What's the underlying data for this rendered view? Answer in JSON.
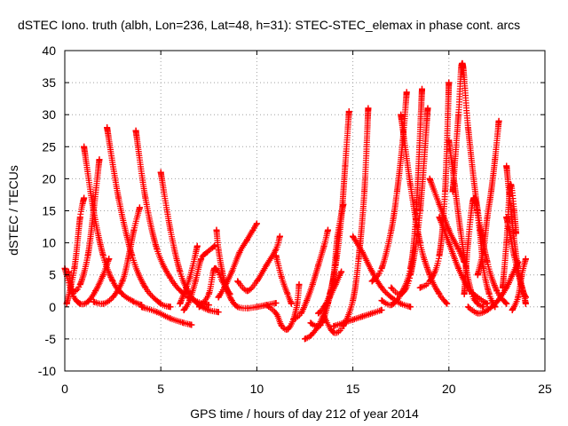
{
  "chart_data": {
    "type": "scatter",
    "title": "dSTEC Iono. truth (albh, Lon=236, Lat=48, h=31): STEC-STEC_elemax in phase cont. arcs",
    "xlabel": "GPS time / hours of day 212 of year 2014",
    "ylabel": "dSTEC  / TECUs",
    "xlim": [
      0,
      25
    ],
    "ylim": [
      -10,
      40
    ],
    "xticks": [
      "0",
      "5",
      "10",
      "15",
      "20",
      "25"
    ],
    "yticks": [
      "-10",
      "-5",
      "0",
      "5",
      "10",
      "15",
      "20",
      "25",
      "30",
      "35",
      "40"
    ],
    "grid": true,
    "marker": "+",
    "color": "#ff0000",
    "series": [
      {
        "x": [
          0.0,
          0.4,
          0.8,
          1.2,
          1.6,
          2.0,
          2.3
        ],
        "y": [
          6.0,
          2.0,
          0.5,
          0.8,
          2.5,
          5.0,
          7.5
        ]
      },
      {
        "x": [
          0.1,
          0.5,
          0.8,
          1.0
        ],
        "y": [
          0.5,
          6.0,
          14.0,
          17.0
        ]
      },
      {
        "x": [
          0.2,
          0.4,
          0.8,
          1.2,
          1.5,
          1.8
        ],
        "y": [
          5.5,
          2.5,
          3.5,
          8.0,
          15.0,
          23.0
        ]
      },
      {
        "x": [
          1.0,
          1.5,
          2.0,
          2.5,
          3.0,
          3.6,
          4.0
        ],
        "y": [
          25.0,
          15.0,
          8.0,
          4.0,
          2.0,
          0.8,
          0.3
        ]
      },
      {
        "x": [
          1.5,
          2.0,
          2.5,
          3.0,
          3.3,
          3.6,
          3.9
        ],
        "y": [
          0.8,
          0.5,
          1.5,
          4.0,
          7.5,
          12.0,
          15.5
        ]
      },
      {
        "x": [
          2.2,
          2.8,
          3.5,
          4.2,
          5.0,
          5.5
        ],
        "y": [
          28.0,
          17.0,
          8.0,
          3.0,
          0.5,
          0.0
        ]
      },
      {
        "x": [
          3.7,
          4.2,
          4.8,
          5.5,
          6.2,
          6.9,
          7.5
        ],
        "y": [
          27.5,
          17.0,
          9.0,
          4.5,
          2.0,
          0.8,
          0.3
        ]
      },
      {
        "x": [
          4.0,
          4.8,
          5.5,
          6.2,
          6.6
        ],
        "y": [
          0.0,
          -0.8,
          -1.8,
          -2.5,
          -2.8
        ]
      },
      {
        "x": [
          5.0,
          5.5,
          6.0,
          6.5,
          7.0,
          7.5,
          8.0
        ],
        "y": [
          21.0,
          12.0,
          5.5,
          2.0,
          0.3,
          -0.5,
          -0.8
        ]
      },
      {
        "x": [
          6.0,
          6.5,
          6.9
        ],
        "y": [
          0.5,
          4.5,
          9.5
        ]
      },
      {
        "x": [
          6.2,
          6.5,
          6.8,
          7.1,
          7.4,
          7.8
        ],
        "y": [
          -0.5,
          1.0,
          4.0,
          7.5,
          8.5,
          9.5
        ]
      },
      {
        "x": [
          7.0,
          7.5,
          7.8,
          8.2,
          8.6
        ],
        "y": [
          0.0,
          2.0,
          6.0,
          4.0,
          2.0
        ]
      },
      {
        "x": [
          8.0,
          8.3,
          8.7,
          9.1,
          9.5,
          9.8,
          10.0
        ],
        "y": [
          1.5,
          3.0,
          5.5,
          8.5,
          10.5,
          12.0,
          13.0
        ]
      },
      {
        "x": [
          7.9,
          8.0,
          8.2,
          8.4,
          8.7,
          9.0,
          9.5,
          10.0,
          10.5,
          11.0
        ],
        "y": [
          12.0,
          9.0,
          5.5,
          3.0,
          1.0,
          0.0,
          -0.2,
          0.0,
          0.3,
          0.6
        ]
      },
      {
        "x": [
          9.0,
          9.5,
          10.0,
          10.5,
          11.0,
          11.2
        ],
        "y": [
          4.0,
          2.5,
          4.0,
          6.5,
          9.0,
          11.0
        ]
      },
      {
        "x": [
          10.5,
          11.0,
          11.3,
          11.6,
          11.9,
          12.1,
          12.2
        ],
        "y": [
          0.3,
          -1.0,
          -3.0,
          -3.5,
          -2.0,
          0.5,
          3.5
        ]
      },
      {
        "x": [
          11.0,
          11.3,
          11.6,
          11.8
        ],
        "y": [
          8.0,
          4.5,
          2.0,
          0.5
        ]
      },
      {
        "x": [
          12.0,
          12.3,
          12.6,
          12.9,
          13.2,
          13.5,
          13.7
        ],
        "y": [
          -1.8,
          -1.0,
          1.0,
          3.5,
          6.5,
          9.5,
          12.0
        ]
      },
      {
        "x": [
          12.5,
          12.8,
          13.2,
          13.5,
          13.8,
          14.1,
          14.4
        ],
        "y": [
          -5.0,
          -4.5,
          -3.0,
          -1.0,
          1.5,
          3.5,
          5.5
        ]
      },
      {
        "x": [
          12.8,
          13.1,
          13.4,
          13.7,
          14.0,
          14.2,
          14.5
        ],
        "y": [
          -2.5,
          -3.0,
          -2.5,
          0.5,
          5.0,
          11.0,
          16.0
        ]
      },
      {
        "x": [
          13.2,
          13.5,
          13.8,
          14.1,
          14.4,
          14.6,
          14.8
        ],
        "y": [
          -1.0,
          0.0,
          2.0,
          6.5,
          14.0,
          22.0,
          30.5
        ]
      },
      {
        "x": [
          13.5,
          14.0,
          14.5,
          15.0,
          15.3,
          15.6,
          15.8
        ],
        "y": [
          -1.5,
          -4.0,
          -3.0,
          1.0,
          7.5,
          18.0,
          31.0
        ]
      },
      {
        "x": [
          14.0,
          14.5,
          15.0,
          15.5,
          16.0,
          16.5
        ],
        "y": [
          -3.0,
          -2.5,
          -2.0,
          -1.5,
          -1.0,
          -0.5
        ]
      },
      {
        "x": [
          15.0,
          15.5,
          16.0,
          16.5,
          17.0,
          17.5,
          18.0
        ],
        "y": [
          11.0,
          8.5,
          5.5,
          3.0,
          1.5,
          0.5,
          0.0
        ]
      },
      {
        "x": [
          16.0,
          16.5,
          17.0,
          17.3,
          17.6,
          17.8
        ],
        "y": [
          4.0,
          6.0,
          12.0,
          18.0,
          26.0,
          33.5
        ]
      },
      {
        "x": [
          16.5,
          17.0,
          17.5,
          18.0,
          18.3,
          18.6
        ],
        "y": [
          1.0,
          0.3,
          2.0,
          6.0,
          15.0,
          34.0
        ]
      },
      {
        "x": [
          17.0,
          17.5,
          18.0,
          18.5,
          18.9
        ],
        "y": [
          3.0,
          2.0,
          5.0,
          15.0,
          31.0
        ]
      },
      {
        "x": [
          17.5,
          18.0,
          18.5,
          19.0,
          19.5,
          19.9
        ],
        "y": [
          30.0,
          19.0,
          10.0,
          5.0,
          2.0,
          0.5
        ]
      },
      {
        "x": [
          18.5,
          19.0,
          19.5,
          19.8,
          20.0
        ],
        "y": [
          3.0,
          4.0,
          8.0,
          18.0,
          35.0
        ]
      },
      {
        "x": [
          19.0,
          19.5,
          20.0,
          20.5,
          20.8
        ],
        "y": [
          20.0,
          16.0,
          12.0,
          9.0,
          7.0
        ]
      },
      {
        "x": [
          19.5,
          20.0,
          20.5,
          21.0,
          21.5,
          22.0
        ],
        "y": [
          14.0,
          10.0,
          6.0,
          3.0,
          1.5,
          0.5
        ]
      },
      {
        "x": [
          20.0,
          20.3,
          20.6,
          20.9,
          21.2,
          21.5,
          21.8
        ],
        "y": [
          26.0,
          19.0,
          12.0,
          6.0,
          2.0,
          0.5,
          0.0
        ]
      },
      {
        "x": [
          20.2,
          20.5,
          20.7,
          21.0,
          21.5,
          22.0,
          22.5,
          23.0
        ],
        "y": [
          18.0,
          30.0,
          38.0,
          28.0,
          15.0,
          7.0,
          2.5,
          0.5
        ]
      },
      {
        "x": [
          20.8,
          21.0,
          21.3,
          21.6,
          21.8,
          22.1,
          22.4
        ],
        "y": [
          2.0,
          10.0,
          17.0,
          12.0,
          6.0,
          2.0,
          0.0
        ]
      },
      {
        "x": [
          21.5,
          21.8,
          22.0,
          22.2,
          22.4,
          22.6
        ],
        "y": [
          5.0,
          9.0,
          14.0,
          18.0,
          23.0,
          29.0
        ]
      },
      {
        "x": [
          21.0,
          21.5,
          22.0,
          22.5,
          23.0,
          23.3,
          23.6
        ],
        "y": [
          0.0,
          -1.0,
          -0.5,
          0.8,
          3.0,
          5.0,
          7.0
        ]
      },
      {
        "x": [
          23.0,
          23.3,
          23.6,
          23.9,
          24.0
        ],
        "y": [
          22.0,
          13.0,
          6.0,
          2.0,
          0.5
        ]
      },
      {
        "x": [
          23.3,
          23.6,
          23.8,
          24.0
        ],
        "y": [
          -0.5,
          1.5,
          5.0,
          7.5
        ]
      },
      {
        "x": [
          22.8,
          23.0,
          23.2,
          23.4,
          23.5
        ],
        "y": [
          3.0,
          10.0,
          19.0,
          15.0,
          11.5
        ]
      },
      {
        "x": [
          23.0,
          23.4,
          23.8,
          24.0
        ],
        "y": [
          14.0,
          8.0,
          3.0,
          1.5
        ]
      }
    ]
  }
}
